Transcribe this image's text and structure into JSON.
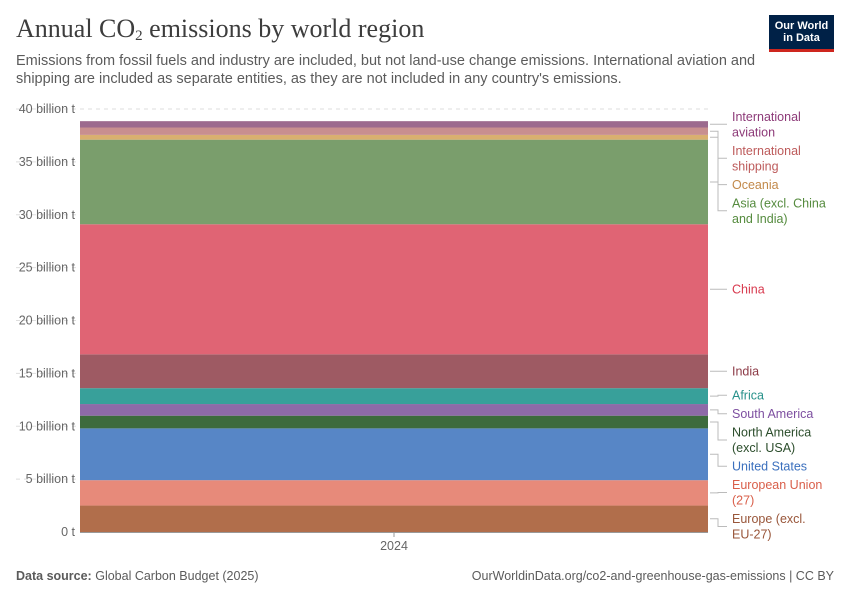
{
  "header": {
    "title_prefix": "Annual CO",
    "title_sub": "2",
    "title_suffix": " emissions by world region",
    "subtitle": "Emissions from fossil fuels and industry are included, but not land-use change emissions. International aviation and shipping are included as separate entities, as they are not included in any country's emissions.",
    "logo_line1": "Our World",
    "logo_line2": "in Data"
  },
  "footer": {
    "source_label": "Data source:",
    "source_value": "Global Carbon Budget (2025)",
    "url": "OurWorldinData.org/co2-and-greenhouse-gas-emissions | CC BY"
  },
  "chart_data": {
    "type": "area",
    "stacked": true,
    "title": "Annual CO₂ emissions by world region",
    "xlabel": "",
    "ylabel": "",
    "x": [
      "2024"
    ],
    "ylim": [
      0,
      40
    ],
    "unit": "billion t",
    "yticks": [
      0,
      5,
      10,
      15,
      20,
      25,
      30,
      35,
      40
    ],
    "ytick_labels": [
      "0 t",
      "5 billion t",
      "10 billion t",
      "15 billion t",
      "20 billion t",
      "25 billion t",
      "30 billion t",
      "35 billion t",
      "40 billion t"
    ],
    "series": [
      {
        "name": "Europe (excl. EU-27)",
        "label_lines": [
          "Europe (excl.",
          "EU-27)"
        ],
        "value": 2.5,
        "color": "#b16e4b",
        "text_color": "#99563a"
      },
      {
        "name": "European Union (27)",
        "label_lines": [
          "European Union",
          "(27)"
        ],
        "value": 2.4,
        "color": "#e78a7a",
        "text_color": "#d95f4a"
      },
      {
        "name": "United States",
        "label_lines": [
          "United States"
        ],
        "value": 4.9,
        "color": "#5786c6",
        "text_color": "#3a6fbd"
      },
      {
        "name": "North America (excl. USA)",
        "label_lines": [
          "North America",
          "(excl. USA)"
        ],
        "value": 1.2,
        "color": "#3d6b3d",
        "text_color": "#2b4d2b"
      },
      {
        "name": "South America",
        "label_lines": [
          "South America"
        ],
        "value": 1.1,
        "color": "#8e6aa8",
        "text_color": "#7d4fa0"
      },
      {
        "name": "Africa",
        "label_lines": [
          "Africa"
        ],
        "value": 1.5,
        "color": "#38a09a",
        "text_color": "#27918a"
      },
      {
        "name": "India",
        "label_lines": [
          "India"
        ],
        "value": 3.2,
        "color": "#9e5a63",
        "text_color": "#8c3a46"
      },
      {
        "name": "China",
        "label_lines": [
          "China"
        ],
        "value": 12.3,
        "color": "#e06474",
        "text_color": "#d8394e"
      },
      {
        "name": "Asia (excl. China and India)",
        "label_lines": [
          "Asia (excl. China",
          "and India)"
        ],
        "value": 8.0,
        "color": "#7a9e6c",
        "text_color": "#558b3e"
      },
      {
        "name": "Oceania",
        "label_lines": [
          "Oceania"
        ],
        "value": 0.45,
        "color": "#d9b06f",
        "text_color": "#c2894a"
      },
      {
        "name": "International shipping",
        "label_lines": [
          "International",
          "shipping"
        ],
        "value": 0.7,
        "color": "#c88f8f",
        "text_color": "#bd5a5a"
      },
      {
        "name": "International aviation",
        "label_lines": [
          "International",
          "aviation"
        ],
        "value": 0.6,
        "color": "#9c6a8e",
        "text_color": "#8d3a78"
      }
    ]
  }
}
